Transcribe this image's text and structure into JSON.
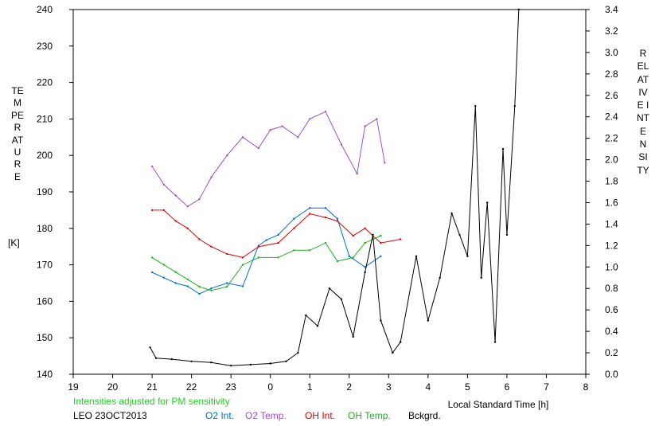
{
  "chart_data": {
    "type": "line",
    "xlabel": "Local Standard Time [h]",
    "ylabel_left": "TEMPERATURE",
    "ylabel_left_unit": "[K]",
    "ylabel_right": "RELATIVE INTENSITY",
    "note": "Intensities adjusted for PM sensitivity",
    "station_date": "LEO 23OCT2013",
    "xlim": [
      19,
      32
    ],
    "x_tick_labels": [
      "19",
      "20",
      "21",
      "22",
      "23",
      "0",
      "1",
      "2",
      "3",
      "4",
      "5",
      "6",
      "7",
      "8"
    ],
    "ylim_left": [
      140,
      240
    ],
    "y_left_ticks": [
      140,
      150,
      160,
      170,
      180,
      190,
      200,
      210,
      220,
      230,
      240
    ],
    "ylim_right": [
      0.0,
      3.4
    ],
    "y_right_ticks": [
      "0.0",
      "0.2",
      "0.4",
      "0.6",
      "0.8",
      "1.0",
      "1.2",
      "1.4",
      "1.6",
      "1.8",
      "2.0",
      "2.2",
      "2.4",
      "2.6",
      "2.8",
      "3.0",
      "3.2",
      "3.4"
    ],
    "grid": false,
    "legend_position": "bottom",
    "series": [
      {
        "name": "O2 Int.",
        "color": "#0070d0",
        "axis": "right",
        "x": [
          21.0,
          21.3,
          21.6,
          21.9,
          22.2,
          22.5,
          22.9,
          23.3,
          23.7,
          23.9,
          24.2,
          24.6,
          25.0,
          25.4,
          25.7,
          26.0,
          26.4,
          26.8
        ],
        "y": [
          0.95,
          0.9,
          0.85,
          0.82,
          0.75,
          0.8,
          0.85,
          0.82,
          1.2,
          1.25,
          1.3,
          1.45,
          1.55,
          1.55,
          1.45,
          1.1,
          1.0,
          1.1
        ]
      },
      {
        "name": "O2 Temp.",
        "color": "#a050c8",
        "axis": "left",
        "x": [
          21.0,
          21.3,
          21.6,
          21.9,
          22.2,
          22.5,
          22.9,
          23.3,
          23.7,
          24.0,
          24.3,
          24.7,
          25.0,
          25.4,
          25.8,
          26.2,
          26.4,
          26.7,
          26.9
        ],
        "y": [
          197,
          192,
          189,
          186,
          188,
          194,
          200,
          205,
          202,
          207,
          208,
          205,
          210,
          212,
          203,
          195,
          208,
          210,
          198
        ]
      },
      {
        "name": "OH Int.",
        "color": "#e00000",
        "axis": "left",
        "x": [
          21.0,
          21.3,
          21.6,
          21.9,
          22.2,
          22.5,
          22.9,
          23.3,
          23.7,
          24.2,
          24.6,
          25.0,
          25.4,
          25.7,
          26.1,
          26.4,
          26.8,
          27.3
        ],
        "y": [
          185,
          185,
          182,
          180,
          177,
          175,
          173,
          172,
          175,
          176,
          180,
          184,
          183,
          182,
          178,
          180,
          176,
          177
        ]
      },
      {
        "name": "OH Temp.",
        "color": "#20b020",
        "axis": "left",
        "x": [
          21.0,
          21.3,
          21.6,
          21.9,
          22.2,
          22.5,
          22.9,
          23.3,
          23.7,
          24.2,
          24.6,
          25.0,
          25.4,
          25.7,
          26.1,
          26.4,
          26.8
        ],
        "y": [
          172,
          170,
          168,
          166,
          164,
          163,
          164,
          170,
          172,
          172,
          174,
          174,
          176,
          171,
          172,
          176,
          178
        ]
      },
      {
        "name": "Bckgrd.",
        "color": "#000000",
        "axis": "right",
        "x": [
          20.95,
          21.1,
          21.5,
          22.0,
          22.5,
          23.0,
          23.5,
          24.0,
          24.4,
          24.7,
          24.9,
          25.2,
          25.5,
          25.8,
          26.1,
          26.4,
          26.6,
          26.8,
          27.1,
          27.3,
          27.7,
          28.0,
          28.3,
          28.6,
          28.8,
          29.0,
          29.2,
          29.35,
          29.5,
          29.7,
          29.9,
          30.0,
          30.2,
          30.3
        ],
        "y": [
          0.25,
          0.15,
          0.14,
          0.12,
          0.11,
          0.08,
          0.09,
          0.1,
          0.12,
          0.2,
          0.55,
          0.45,
          0.8,
          0.7,
          0.35,
          0.95,
          1.3,
          0.5,
          0.2,
          0.3,
          1.1,
          0.5,
          0.9,
          1.5,
          1.3,
          1.1,
          2.5,
          0.9,
          1.6,
          0.3,
          2.1,
          1.3,
          2.5,
          3.4
        ]
      }
    ]
  }
}
